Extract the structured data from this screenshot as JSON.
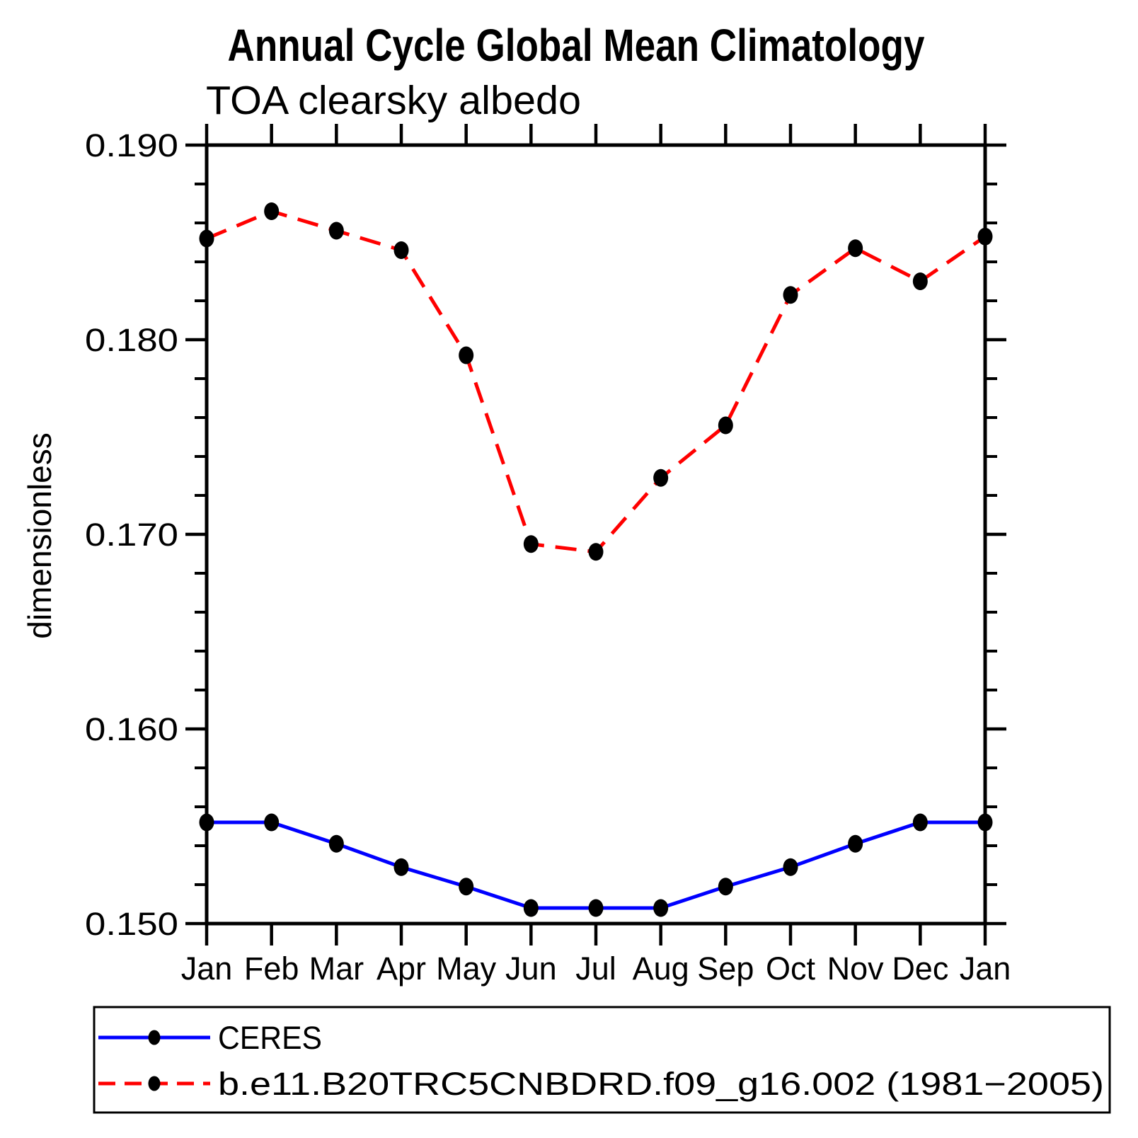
{
  "page": {
    "background": "#ffffff"
  },
  "chart_data": {
    "type": "line",
    "title": "Annual Cycle Global Mean Climatology",
    "subtitle": "TOA clearsky albedo",
    "ylabel": "dimensionless",
    "xlabel": "",
    "categories": [
      "Jan",
      "Feb",
      "Mar",
      "Apr",
      "May",
      "Jun",
      "Jul",
      "Aug",
      "Sep",
      "Oct",
      "Nov",
      "Dec",
      "Jan"
    ],
    "ylim": [
      0.15,
      0.19
    ],
    "yticks": [
      0.15,
      0.16,
      0.17,
      0.18,
      0.19
    ],
    "ytick_labels": [
      "0.150",
      "0.160",
      "0.170",
      "0.180",
      "0.190"
    ],
    "yminor_step": 0.002,
    "grid": false,
    "legend_position": "bottom-left-box",
    "axis_color": "#000000",
    "marker_shape": "filled-circle",
    "series": [
      {
        "name": "CERES",
        "color": "#0000ff",
        "line_style": "solid",
        "marker_color": "#000000",
        "values": [
          0.1552,
          0.1552,
          0.1541,
          0.1529,
          0.1519,
          0.1508,
          0.1508,
          0.1508,
          0.1519,
          0.1529,
          0.1541,
          0.1552,
          0.1552
        ]
      },
      {
        "name": "b.e11.B20TRC5CNBDRD.f09_g16.002 (1981−2005)",
        "color": "#ff0000",
        "line_style": "dashed",
        "marker_color": "#000000",
        "values": [
          0.1852,
          0.1866,
          0.1856,
          0.1846,
          0.1792,
          0.1695,
          0.1691,
          0.1729,
          0.1756,
          0.1823,
          0.1847,
          0.183,
          0.1853
        ]
      }
    ]
  }
}
